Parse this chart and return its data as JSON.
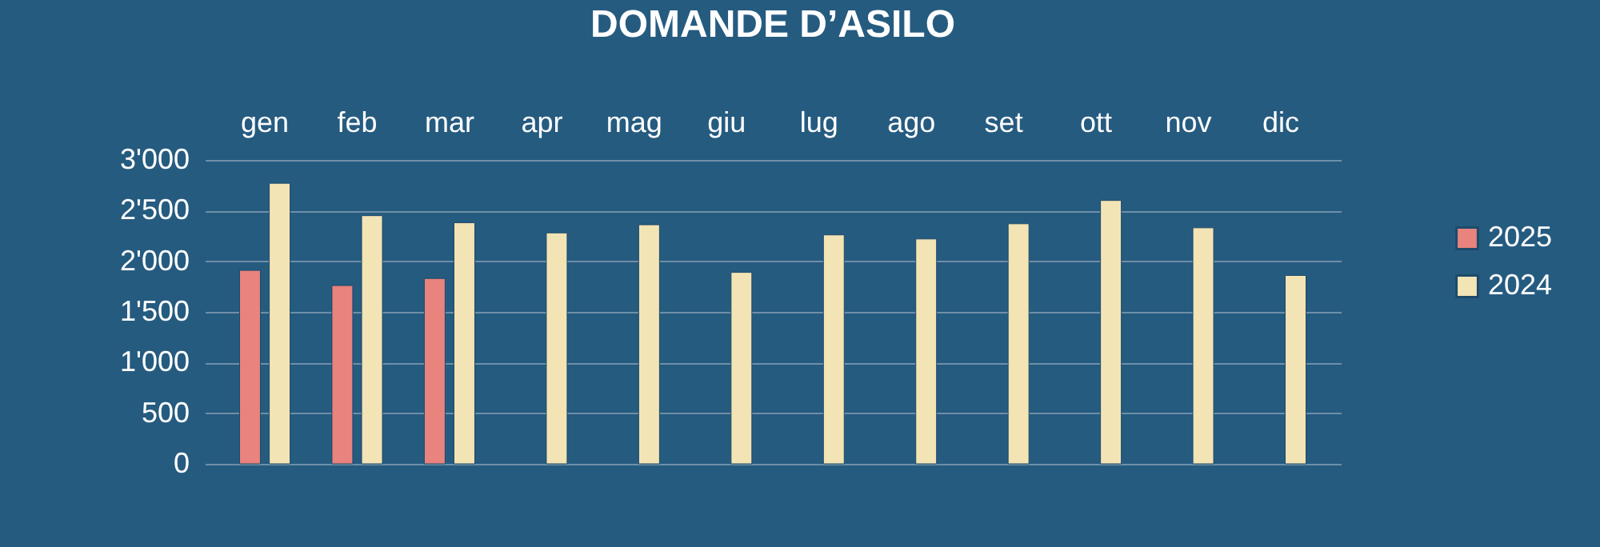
{
  "chart_data": {
    "type": "bar",
    "title": "DOMANDE D’ASILO",
    "categories": [
      "gen",
      "feb",
      "mar",
      "apr",
      "mag",
      "giu",
      "lug",
      "ago",
      "set",
      "ott",
      "nov",
      "dic"
    ],
    "series": [
      {
        "name": "2025",
        "color": "#e8837d",
        "values": [
          1910,
          1760,
          1830,
          null,
          null,
          null,
          null,
          null,
          null,
          null,
          null,
          null
        ]
      },
      {
        "name": "2024",
        "color": "#f3e4b5",
        "values": [
          2770,
          2450,
          2380,
          2280,
          2360,
          1890,
          2260,
          2220,
          2370,
          2600,
          2330,
          1860
        ]
      }
    ],
    "ylim": [
      0,
      3000
    ],
    "yticks": [
      0,
      500,
      {
        "value": 1000,
        "label": "1'000"
      },
      {
        "value": 1500,
        "label": "1'500"
      },
      {
        "value": 2000,
        "label": "2'000"
      },
      {
        "value": 2500,
        "label": "2'500"
      },
      {
        "value": 3000,
        "label": "3'000"
      }
    ],
    "grid": "y",
    "legend": "right"
  }
}
